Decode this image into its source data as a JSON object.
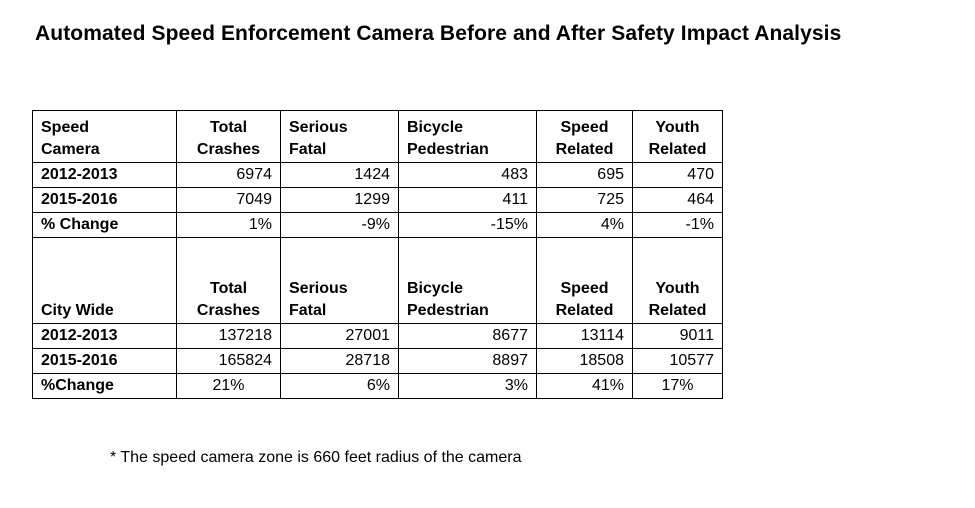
{
  "title": "Automated Speed Enforcement Camera Before and After Safety Impact Analysis",
  "footnote": "* The speed camera zone is 660 feet radius of the camera",
  "chart_data": {
    "type": "table",
    "title": "Automated Speed Enforcement Camera Before and After Safety Impact Analysis",
    "sections": [
      {
        "header": [
          [
            "Speed",
            "Camera"
          ],
          [
            "Total",
            "Crashes"
          ],
          [
            "Serious",
            "Fatal"
          ],
          [
            "Bicycle",
            "Pedestrian"
          ],
          [
            "Speed",
            "Related"
          ],
          [
            "Youth",
            "Related"
          ]
        ],
        "rows": [
          {
            "label": "2012-2013",
            "values": [
              "6974",
              "1424",
              "483",
              "695",
              "470"
            ]
          },
          {
            "label": "2015-2016",
            "values": [
              "7049",
              "1299",
              "411",
              "725",
              "464"
            ]
          },
          {
            "label": "% Change",
            "values": [
              "1%",
              "-9%",
              "-15%",
              "4%",
              "-1%"
            ]
          }
        ]
      },
      {
        "header": [
          [
            "",
            "City Wide"
          ],
          [
            "Total",
            "Crashes"
          ],
          [
            "Serious",
            "Fatal"
          ],
          [
            "Bicycle",
            "Pedestrian"
          ],
          [
            "Speed",
            "Related"
          ],
          [
            "Youth",
            "Related"
          ]
        ],
        "rows": [
          {
            "label": "2012-2013",
            "values": [
              "137218",
              "27001",
              "8677",
              "13114",
              "9011"
            ]
          },
          {
            "label": "2015-2016",
            "values": [
              "165824",
              "28718",
              "8897",
              "18508",
              "10577"
            ]
          },
          {
            "label": "%Change",
            "values": [
              "21%",
              "6%",
              "3%",
              "41%",
              "17%"
            ]
          }
        ]
      }
    ]
  }
}
